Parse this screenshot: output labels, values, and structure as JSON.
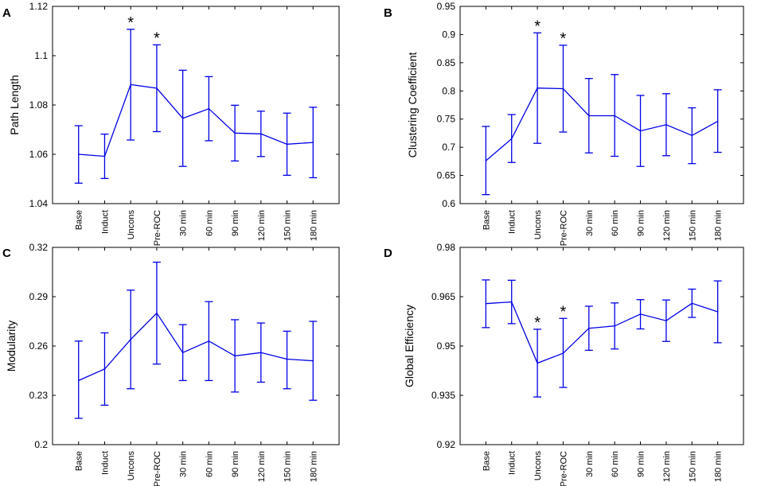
{
  "chart_data": [
    {
      "panel": "A",
      "type": "line",
      "ylabel": "Path Length",
      "ylim": [
        1.04,
        1.12
      ],
      "yticks": [
        1.04,
        1.06,
        1.08,
        1.1,
        1.12
      ],
      "ytick_labels": [
        "1.04",
        "1.06",
        "1.08",
        "1.1",
        "1.12"
      ],
      "categories": [
        "Base",
        "Induct",
        "Uncons",
        "Pre-ROC",
        "30 min",
        "60 min",
        "90 min",
        "120 min",
        "150 min",
        "180 min"
      ],
      "values": [
        1.06,
        1.0592,
        1.0883,
        1.0868,
        1.0746,
        1.0785,
        1.0686,
        1.0683,
        1.0641,
        1.0648
      ],
      "err_low": [
        1.0483,
        1.0502,
        1.0658,
        1.0692,
        1.0551,
        1.0655,
        1.0573,
        1.0591,
        1.0515,
        1.0505
      ],
      "err_high": [
        1.0716,
        1.0682,
        1.1107,
        1.1044,
        1.0941,
        1.0915,
        1.0799,
        1.0775,
        1.0767,
        1.0791
      ],
      "significant": [
        2,
        3
      ],
      "marker": "*"
    },
    {
      "panel": "B",
      "type": "line",
      "ylabel": "Clustering Coefficient",
      "ylim": [
        0.6,
        0.95
      ],
      "yticks": [
        0.6,
        0.65,
        0.7,
        0.75,
        0.8,
        0.85,
        0.9,
        0.95
      ],
      "ytick_labels": [
        "0.6",
        "0.65",
        "0.7",
        "0.75",
        "0.8",
        "0.85",
        "0.9",
        "0.95"
      ],
      "categories": [
        "Base",
        "Induct",
        "Uncons",
        "Pre-ROC",
        "30 min",
        "60 min",
        "90 min",
        "120 min",
        "150 min",
        "180 min"
      ],
      "values": [
        0.676,
        0.715,
        0.805,
        0.804,
        0.756,
        0.756,
        0.729,
        0.74,
        0.721,
        0.746
      ],
      "err_low": [
        0.616,
        0.673,
        0.707,
        0.727,
        0.69,
        0.684,
        0.666,
        0.685,
        0.671,
        0.691
      ],
      "err_high": [
        0.737,
        0.758,
        0.903,
        0.881,
        0.822,
        0.829,
        0.792,
        0.795,
        0.77,
        0.802
      ],
      "significant": [
        2,
        3
      ],
      "marker": "*"
    },
    {
      "panel": "C",
      "type": "line",
      "ylabel": "Modularity",
      "ylim": [
        0.2,
        0.32
      ],
      "yticks": [
        0.2,
        0.23,
        0.26,
        0.29,
        0.32
      ],
      "ytick_labels": [
        "0.2",
        "0.23",
        "0.26",
        "0.29",
        "0.32"
      ],
      "categories": [
        "Base",
        "Induct",
        "Uncons",
        "Pre-ROC",
        "30 min",
        "60 min",
        "90 min",
        "120 min",
        "150 min",
        "180 min"
      ],
      "values": [
        0.239,
        0.246,
        0.264,
        0.28,
        0.256,
        0.263,
        0.254,
        0.256,
        0.252,
        0.251
      ],
      "err_low": [
        0.216,
        0.224,
        0.234,
        0.249,
        0.239,
        0.239,
        0.232,
        0.238,
        0.234,
        0.227
      ],
      "err_high": [
        0.263,
        0.268,
        0.294,
        0.311,
        0.273,
        0.287,
        0.276,
        0.274,
        0.269,
        0.275
      ],
      "significant": [],
      "marker": "*"
    },
    {
      "panel": "D",
      "type": "line",
      "ylabel": "Global Efficiency",
      "ylim": [
        0.92,
        0.98
      ],
      "yticks": [
        0.92,
        0.935,
        0.95,
        0.965,
        0.98
      ],
      "ytick_labels": [
        "0.92",
        "0.935",
        "0.95",
        "0.965",
        "0.98"
      ],
      "categories": [
        "Base",
        "Induct",
        "Uncons",
        "Pre-ROC",
        "30 min",
        "60 min",
        "90 min",
        "120 min",
        "150 min",
        "180 min"
      ],
      "values": [
        0.9629,
        0.9634,
        0.9448,
        0.9478,
        0.9554,
        0.9561,
        0.9597,
        0.9577,
        0.963,
        0.9604
      ],
      "err_low": [
        0.9556,
        0.9568,
        0.9345,
        0.9374,
        0.9487,
        0.9491,
        0.9552,
        0.9514,
        0.9587,
        0.951
      ],
      "err_high": [
        0.9701,
        0.97,
        0.9551,
        0.9584,
        0.9621,
        0.9631,
        0.9641,
        0.964,
        0.9673,
        0.9698
      ],
      "significant": [
        2,
        3
      ],
      "marker": "*"
    }
  ]
}
